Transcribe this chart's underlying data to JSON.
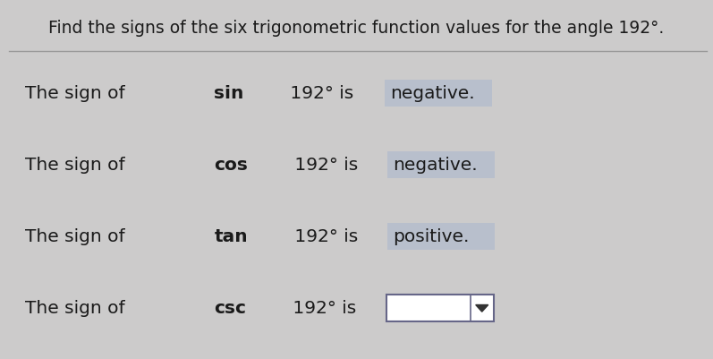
{
  "title": "Find the signs of the six trigonometric function values for the angle 192°.",
  "background_color": "#cccbcb",
  "title_fontsize": 13.5,
  "body_fontsize": 14.5,
  "lines": [
    {
      "prefix_normal": "The sign of ",
      "prefix_bold": "sin",
      "suffix": " 192° is",
      "answer": "negative.",
      "answer_bg": "#b8bfcc",
      "has_dropdown": false
    },
    {
      "prefix_normal": "The sign of ",
      "prefix_bold": "cos",
      "suffix": " 192° is",
      "answer": "negative.",
      "answer_bg": "#b8bfcc",
      "has_dropdown": false
    },
    {
      "prefix_normal": "The sign of ",
      "prefix_bold": "tan",
      "suffix": " 192° is",
      "answer": "positive.",
      "answer_bg": "#b8bfcc",
      "has_dropdown": false
    },
    {
      "prefix_normal": "The sign of ",
      "prefix_bold": "csc",
      "suffix": " 192° is",
      "answer": "",
      "answer_bg": "#ffffff",
      "has_dropdown": true
    }
  ],
  "separator_color": "#999999",
  "text_color": "#1a1a1a",
  "dropdown_arrow_color": "#333333",
  "dropdown_box_border": "#666688"
}
